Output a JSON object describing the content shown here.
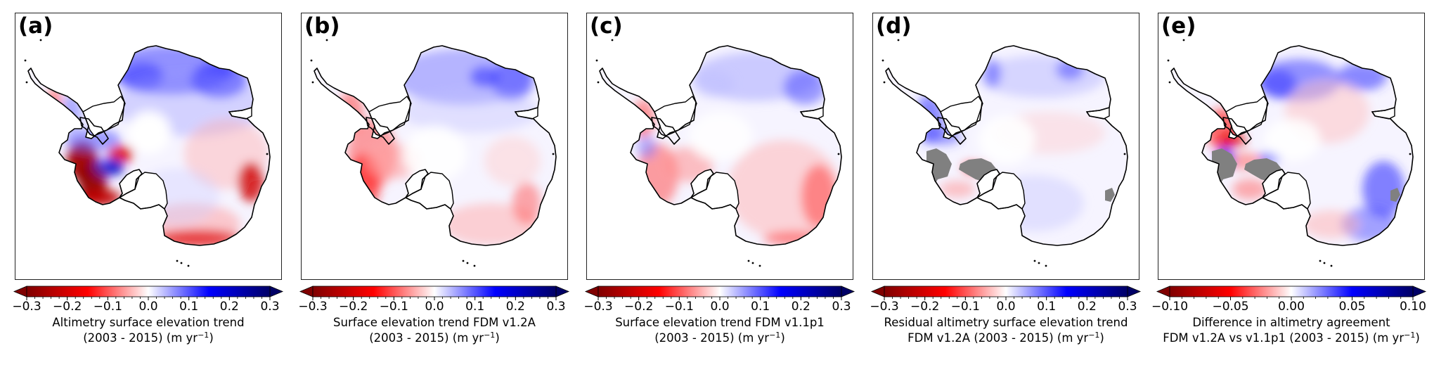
{
  "figure": {
    "domain": "Map",
    "projection": "Antarctic polar stereographic",
    "colormap": "seismic_r (red = negative, white = zero, blue = positive)",
    "colors": {
      "dark_red": "#800000",
      "red": "#ff0000",
      "white": "#ffffff",
      "blue": "#0000ff",
      "dark_blue": "#000066",
      "mask_grey": "#808080",
      "coastline": "#000000"
    }
  },
  "panels": [
    {
      "id": "a",
      "label": "(a)",
      "colorbar": {
        "min": -0.3,
        "max": 0.3,
        "extend": "both",
        "ticks": [
          "−0.3",
          "−0.2",
          "−0.1",
          "0.0",
          "0.1",
          "0.2",
          "0.3"
        ],
        "tick_values": [
          -0.3,
          -0.2,
          -0.1,
          0.0,
          0.1,
          0.2,
          0.3
        ],
        "minor_step": 0.02,
        "title_line1": "Altimetry surface elevation trend",
        "title_line2": "(2003 - 2015) (m yr",
        "unit_sup": "−1",
        "title_close": ")"
      },
      "masked_regions": false,
      "pattern": "blue coastal East Antarctica (Dronning Maud Land), strong red Amundsen Sea sector, dark blue Kamb ice stream, red Totten glacier"
    },
    {
      "id": "b",
      "label": "(b)",
      "colorbar": {
        "min": -0.3,
        "max": 0.3,
        "extend": "both",
        "ticks": [
          "−0.3",
          "−0.2",
          "−0.1",
          "0.0",
          "0.1",
          "0.2",
          "0.3"
        ],
        "tick_values": [
          -0.3,
          -0.2,
          -0.1,
          0.0,
          0.1,
          0.2,
          0.3
        ],
        "minor_step": 0.02,
        "title_line1": "Surface elevation trend FDM v1.2A",
        "title_line2": "(2003 - 2015) (m yr",
        "unit_sup": "−1",
        "title_close": ")"
      },
      "masked_regions": false,
      "pattern": "light blue northern East Antarctica, red West Antarctica coast and Wilkes Land"
    },
    {
      "id": "c",
      "label": "(c)",
      "colorbar": {
        "min": -0.3,
        "max": 0.3,
        "extend": "both",
        "ticks": [
          "−0.3",
          "−0.2",
          "−0.1",
          "0.0",
          "0.1",
          "0.2",
          "0.3"
        ],
        "tick_values": [
          -0.3,
          -0.2,
          -0.1,
          0.0,
          0.1,
          0.2,
          0.3
        ],
        "minor_step": 0.02,
        "title_line1": "Surface elevation trend FDM v1.1p1",
        "title_line2": "(2003 - 2015) (m yr",
        "unit_sup": "−1",
        "title_close": ")"
      },
      "masked_regions": false,
      "pattern": "light blue northern East Antarctica, pink/red over most of East Antarctica interior and coast"
    },
    {
      "id": "d",
      "label": "(d)",
      "colorbar": {
        "min": -0.3,
        "max": 0.3,
        "extend": "both",
        "ticks": [
          "−0.3",
          "−0.2",
          "−0.1",
          "0.0",
          "0.1",
          "0.2",
          "0.3"
        ],
        "tick_values": [
          -0.3,
          -0.2,
          -0.1,
          0.0,
          0.1,
          0.2,
          0.3
        ],
        "minor_step": 0.02,
        "title_line1": "Residual altimetry surface elevation trend",
        "title_line2": "FDM v1.2A (2003 - 2015) (m yr",
        "unit_sup": "−1",
        "title_close": ")"
      },
      "masked_regions": true,
      "pattern": "mostly near-zero residuals, blue Antarctic Peninsula, grey masked Amundsen and Siple coast regions and Totten"
    },
    {
      "id": "e",
      "label": "(e)",
      "colorbar": {
        "min": -0.1,
        "max": 0.1,
        "extend": "both",
        "ticks": [
          "−0.10",
          "−0.05",
          "0.00",
          "0.05",
          "0.10"
        ],
        "tick_values": [
          -0.1,
          -0.05,
          0.0,
          0.05,
          0.1
        ],
        "minor_step": 0.01,
        "title_line1": "Difference in altimetry agreement",
        "title_line2": "FDM v1.2A vs v1.1p1 (2003 - 2015) (m yr",
        "unit_sup": "−1",
        "title_close": ")"
      },
      "masked_regions": true,
      "pattern": "blue over northern coast and Wilkes Land, red over Peninsula and interior patches, grey masked regions"
    }
  ]
}
